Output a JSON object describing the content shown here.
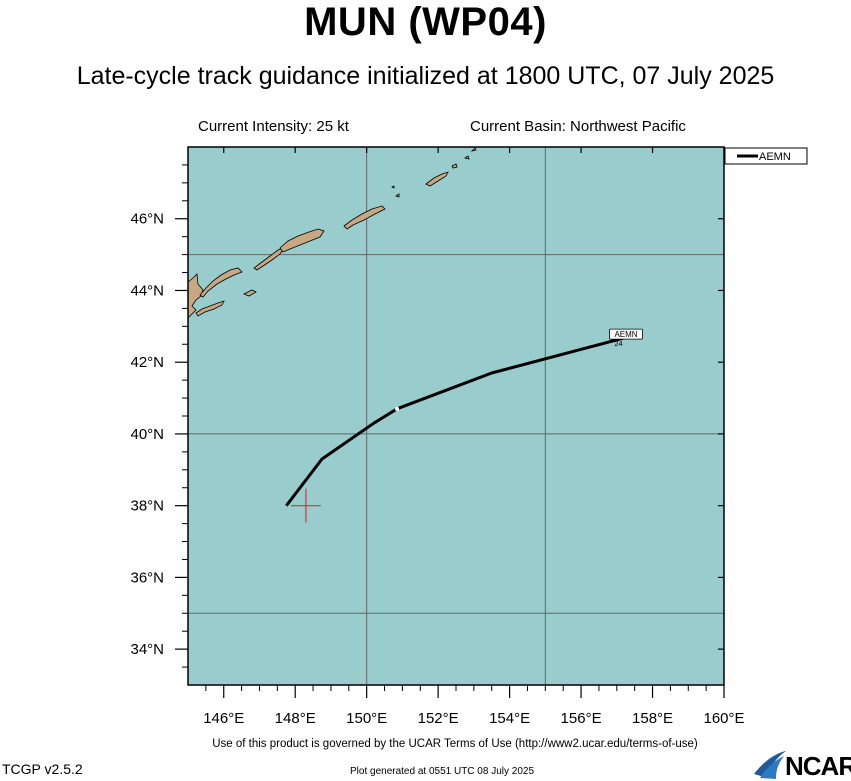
{
  "header": {
    "title": "MUN (WP04)",
    "subtitle": "Late-cycle track guidance initialized at 1800 UTC, 07 July 2025",
    "current_intensity": "Current Intensity: 25 kt",
    "current_basin": "Current Basin: Northwest Pacific"
  },
  "map": {
    "lon_range": [
      145,
      160
    ],
    "lat_range": [
      33,
      48
    ],
    "lon_tick_labels": [
      "146°E",
      "148°E",
      "150°E",
      "152°E",
      "154°E",
      "156°E",
      "158°E",
      "160°E"
    ],
    "lat_tick_labels": [
      "34°N",
      "36°N",
      "38°N",
      "40°N",
      "42°N",
      "44°N",
      "46°N"
    ],
    "grid_lons": [
      150,
      155
    ],
    "grid_lats": [
      35,
      40,
      45
    ],
    "ocean_color": "#99CCCC",
    "land_color": "#C8A882",
    "current_position": {
      "lon": 148.3,
      "lat": 38.0,
      "marker_color": "#E03030"
    }
  },
  "legend": {
    "label": "AEMN"
  },
  "tracks": [
    {
      "name": "AEMN",
      "color": "#000000",
      "end_label": "AEMN",
      "end_hour_label": "24",
      "points": [
        {
          "lon": 147.75,
          "lat": 38.0
        },
        {
          "lon": 148.75,
          "lat": 39.3
        },
        {
          "lon": 150.2,
          "lat": 40.3
        },
        {
          "lon": 150.85,
          "lat": 40.7
        },
        {
          "lon": 153.5,
          "lat": 41.7
        },
        {
          "lon": 157.3,
          "lat": 42.7
        }
      ],
      "marker_points": [
        {
          "lon": 150.85,
          "lat": 40.7
        }
      ]
    }
  ],
  "footer": {
    "terms": "Use of this product is governed by the UCAR Terms of Use (http://www2.ucar.edu/terms-of-use)",
    "version": "TCGP v2.5.2",
    "generated": "Plot generated at 0551 UTC   08 July 2025",
    "logo_text": "NCAR"
  }
}
